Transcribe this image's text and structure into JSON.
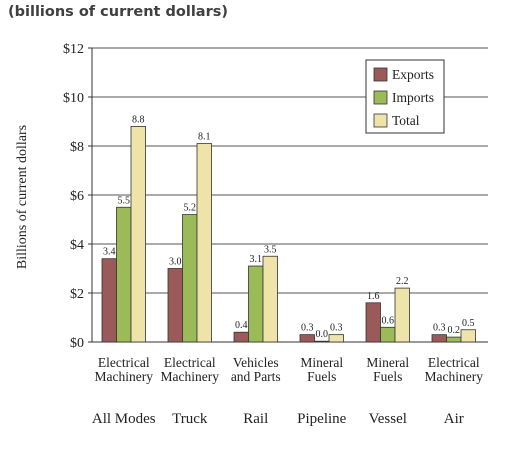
{
  "header": {
    "title": "(billions of current dollars)"
  },
  "chart_data": {
    "type": "bar",
    "ylabel": "Billions of current dollars",
    "ylim": [
      0,
      12
    ],
    "yticks": [
      0,
      2,
      4,
      6,
      8,
      10,
      12
    ],
    "ytick_labels": [
      "$0",
      "$2",
      "$4",
      "$6",
      "$8",
      "$10",
      "$12"
    ],
    "grid": true,
    "legend_position": "top-right",
    "categories": [
      {
        "line1": "Electrical",
        "line2": "Machinery",
        "mode": "All Modes"
      },
      {
        "line1": "Electrical",
        "line2": "Machinery",
        "mode": "Truck"
      },
      {
        "line1": "Vehicles",
        "line2": "and Parts",
        "mode": "Rail"
      },
      {
        "line1": "Mineral",
        "line2": "Fuels",
        "mode": "Pipeline"
      },
      {
        "line1": "Mineral",
        "line2": "Fuels",
        "mode": "Vessel"
      },
      {
        "line1": "Electrical",
        "line2": "Machinery",
        "mode": "Air"
      }
    ],
    "series": [
      {
        "name": "Exports",
        "color": "#9b5a5a",
        "values": [
          3.4,
          3.0,
          0.4,
          0.3,
          1.6,
          0.3
        ],
        "labels": [
          "3.4",
          "3.0",
          "0.4",
          "0.3",
          "1.6",
          "0.3"
        ]
      },
      {
        "name": "Imports",
        "color": "#9bbb59",
        "values": [
          5.5,
          5.2,
          3.1,
          0.0,
          0.6,
          0.2
        ],
        "labels": [
          "5.5",
          "5.2",
          "3.1",
          "0.0",
          "0.6",
          "0.2"
        ]
      },
      {
        "name": "Total",
        "color": "#eee3a8",
        "values": [
          8.8,
          8.1,
          3.5,
          0.3,
          2.2,
          0.5
        ],
        "labels": [
          "8.8",
          "8.1",
          "3.5",
          "0.3",
          "2.2",
          "0.5"
        ]
      }
    ]
  }
}
